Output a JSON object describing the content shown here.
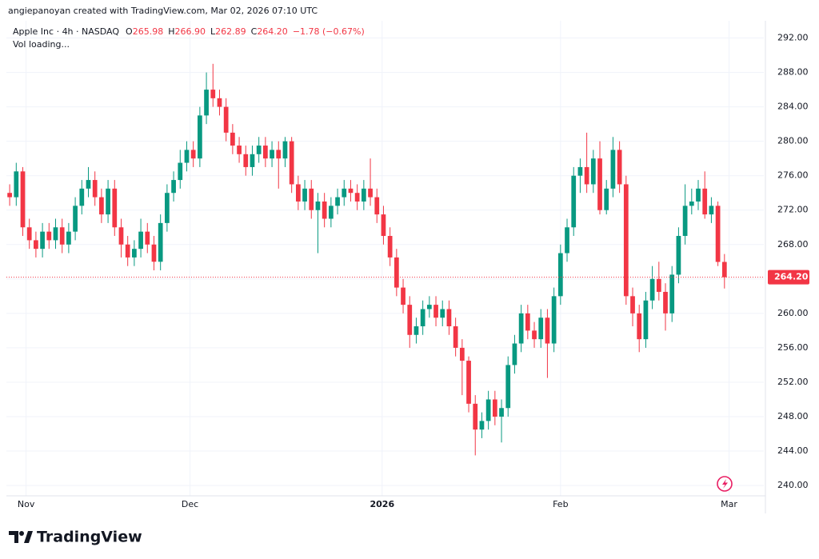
{
  "header": "angiepanoyan created with TradingView.com, Mar 02, 2026 07:10 UTC",
  "legend": {
    "symbol": "Apple Inc · 4h · NASDAQ",
    "items": [
      {
        "key": "O",
        "value": "265.98"
      },
      {
        "key": "H",
        "value": "266.90"
      },
      {
        "key": "L",
        "value": "262.89"
      },
      {
        "key": "C",
        "value": "264.20"
      }
    ],
    "change": "−1.78 (−0.67%)",
    "volume": "Vol loading..."
  },
  "brand": "TradingView",
  "chart_data": {
    "type": "candlestick",
    "up_color": "#089981",
    "down_color": "#f23645",
    "open": [
      274,
      273.5,
      276.5,
      270,
      268.5,
      267.5,
      269.5,
      268.5,
      270,
      268,
      269.5,
      272.5,
      274.5,
      275.5,
      273.5,
      271.5,
      274.5,
      270,
      268,
      266.5,
      267.5,
      269.5,
      268,
      266,
      270.5,
      274,
      275.5,
      277.5,
      279,
      278,
      283,
      286,
      285,
      284,
      281,
      279.5,
      278.5,
      277,
      278.5,
      279.5,
      278,
      279,
      278,
      280,
      275,
      273,
      274.5,
      272,
      273,
      271,
      272.5,
      273.5,
      274.5,
      274,
      273,
      274.5,
      273.5,
      271.5,
      269,
      266.5,
      263,
      261,
      257.5,
      258.5,
      260.5,
      261,
      259.5,
      260.5,
      258.5,
      256,
      254.5,
      249.5,
      246.5,
      247.5,
      250,
      248,
      249,
      254,
      256.5,
      260,
      258,
      257,
      259.5,
      256.5,
      262,
      267,
      270,
      276,
      277,
      275,
      278,
      272,
      274.5,
      279,
      275,
      262,
      260,
      257,
      261.5,
      264,
      262.5,
      260,
      264.5,
      269,
      272.5,
      273,
      274.5,
      271.5,
      272.5,
      265.98
    ],
    "high": [
      275,
      277.5,
      277,
      271,
      269.5,
      270.5,
      270.5,
      271,
      271,
      270.5,
      273.5,
      275.5,
      277,
      276.5,
      274.5,
      275.5,
      275.5,
      271,
      269,
      268.5,
      271,
      270.5,
      269,
      271.5,
      275,
      276.5,
      279,
      280,
      280,
      284,
      288,
      289,
      286,
      285,
      282,
      280.5,
      279.5,
      279.5,
      280.5,
      280.5,
      280,
      280,
      280.5,
      280.5,
      276,
      275.5,
      275.5,
      274,
      274,
      273.5,
      274.5,
      275.5,
      275.5,
      275,
      275.5,
      278,
      274.5,
      272.5,
      270,
      267.5,
      264,
      262,
      259.5,
      261.5,
      262,
      262,
      261.5,
      261.5,
      259.5,
      257,
      255,
      250.5,
      248.5,
      251,
      251,
      250,
      255,
      257.5,
      261,
      261,
      259,
      260.5,
      260.5,
      263,
      268,
      271,
      277,
      278,
      281,
      279,
      280,
      275.5,
      280.5,
      280,
      276,
      263,
      261,
      262.5,
      265.5,
      266,
      263.5,
      265.5,
      270,
      275,
      274.5,
      275.5,
      276.5,
      273.5,
      273,
      266.9
    ],
    "low": [
      272.5,
      272.5,
      269,
      267.5,
      266.5,
      266.5,
      267.5,
      267.5,
      267,
      267,
      268.5,
      271.5,
      273.5,
      272.5,
      270.5,
      270.5,
      269,
      266.5,
      265.5,
      265.5,
      266.5,
      267,
      265,
      265,
      269.5,
      273,
      274.5,
      276.5,
      277,
      277,
      282,
      284,
      283,
      280,
      278.5,
      277.5,
      276,
      276,
      277.5,
      277,
      277,
      274.5,
      277,
      274,
      272,
      272,
      271,
      267,
      270,
      270,
      271.5,
      272.5,
      273,
      272,
      272,
      272.5,
      270.5,
      268,
      265.5,
      262,
      260,
      256,
      256.5,
      257.5,
      259.5,
      258.5,
      258.5,
      257.5,
      255,
      250.5,
      248.5,
      243.5,
      245.5,
      246.5,
      247,
      245,
      248,
      253,
      255.5,
      257,
      256,
      256,
      252.5,
      255.5,
      261,
      266,
      269,
      274,
      274,
      274,
      271.5,
      271.5,
      273.5,
      274,
      261,
      258.5,
      255.5,
      256,
      260.5,
      261.5,
      258,
      259,
      263.5,
      268,
      271.5,
      272,
      271,
      270.5,
      265.5,
      262.89
    ],
    "close": [
      273.5,
      276.5,
      270,
      268.5,
      267.5,
      269.5,
      268.5,
      270,
      268,
      269.5,
      272.5,
      274.5,
      275.5,
      273.5,
      271.5,
      274.5,
      270,
      268,
      266.5,
      267.5,
      269.5,
      268,
      266,
      270.5,
      274,
      275.5,
      277.5,
      279,
      278,
      283,
      286,
      285,
      284,
      281,
      279.5,
      278.5,
      277,
      278.5,
      279.5,
      278,
      279,
      278,
      280,
      275,
      273,
      274.5,
      272,
      273,
      271,
      272.5,
      273.5,
      274.5,
      274,
      273,
      274.5,
      273.5,
      271.5,
      269,
      266.5,
      263,
      261,
      257.5,
      258.5,
      260.5,
      261,
      259.5,
      260.5,
      258.5,
      256,
      254.5,
      249.5,
      246.5,
      247.5,
      250,
      248,
      249,
      254,
      256.5,
      260,
      258,
      257,
      259.5,
      256.5,
      262,
      267,
      270,
      276,
      277,
      275,
      278,
      272,
      274.5,
      279,
      275,
      262,
      260,
      257,
      261.5,
      264,
      262.5,
      260,
      264.5,
      269,
      272.5,
      273,
      274.5,
      271.5,
      272.5,
      265.98,
      264.2
    ],
    "xlim": [
      0,
      115.5
    ],
    "xticks": [
      {
        "value": 3,
        "label": "Nov"
      },
      {
        "value": 28,
        "label": "Dec"
      },
      {
        "value": 57.3,
        "label": "2026"
      },
      {
        "value": 84.5,
        "label": "Feb"
      },
      {
        "value": 110.2,
        "label": "Mar"
      }
    ],
    "ylim": [
      238.8,
      294
    ],
    "yticks": [
      {
        "value": 240,
        "label": "240.00"
      },
      {
        "value": 244,
        "label": "244.00"
      },
      {
        "value": 248,
        "label": "248.00"
      },
      {
        "value": 252,
        "label": "252.00"
      },
      {
        "value": 256,
        "label": "256.00"
      },
      {
        "value": 260,
        "label": "260.00"
      },
      {
        "value": 264,
        "label": "264.00"
      },
      {
        "value": 268,
        "label": "268.00"
      },
      {
        "value": 272,
        "label": "272.00"
      },
      {
        "value": 276,
        "label": "276.00"
      },
      {
        "value": 280,
        "label": "280.00"
      },
      {
        "value": 284,
        "label": "284.00"
      },
      {
        "value": 288,
        "label": "288.00"
      },
      {
        "value": 292,
        "label": "292.00"
      }
    ],
    "last_price": {
      "value": 264.2,
      "label": "264.20"
    },
    "grid": true
  }
}
